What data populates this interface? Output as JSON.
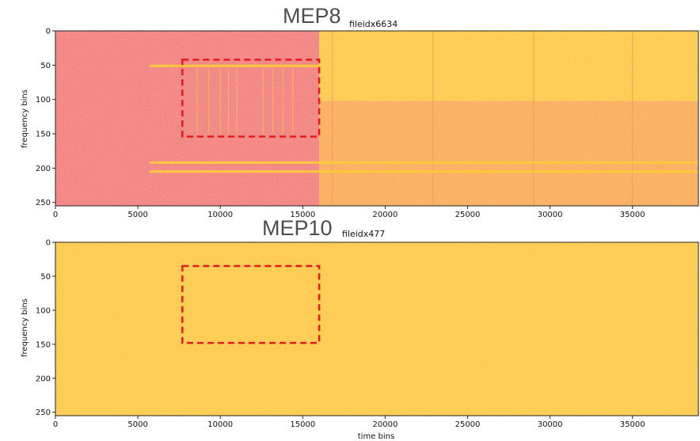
{
  "colors": {
    "pink_background": "#f27a78",
    "yellow_background": "#fdc92e",
    "orange_background": "#fbaa48",
    "signal_line": "#fcc93a",
    "highlight_box": "#e8191c",
    "axis": "#222222"
  },
  "chart_data": [
    {
      "type": "heatmap",
      "title": "MEP8",
      "subtitle": "fileidx6634",
      "xlabel": "",
      "ylabel": "frequency bins",
      "xlim": [
        0,
        39000
      ],
      "ylim": [
        255,
        0
      ],
      "xticks": [
        0,
        5000,
        10000,
        15000,
        20000,
        25000,
        30000,
        35000
      ],
      "xtick_labels": [
        "0",
        "5000",
        "10000",
        "15000",
        "20000",
        "25000",
        "30000",
        "35000"
      ],
      "yticks": [
        0,
        50,
        100,
        150,
        200,
        250
      ],
      "ytick_labels": [
        "0",
        "50",
        "100",
        "150",
        "200",
        "250"
      ],
      "regions": [
        {
          "x": [
            0,
            16000
          ],
          "y": [
            0,
            255
          ],
          "color": "#f27a78"
        },
        {
          "x": [
            16000,
            39000
          ],
          "y": [
            0,
            102
          ],
          "color": "#fdc92e"
        },
        {
          "x": [
            16000,
            39000
          ],
          "y": [
            102,
            255
          ],
          "color": "#fbaa48"
        }
      ],
      "horizontal_lines": [
        {
          "x": [
            5700,
            16000
          ],
          "y": 51
        },
        {
          "x": [
            5700,
            39000
          ],
          "y": 192
        },
        {
          "x": [
            5700,
            39000
          ],
          "y": 205
        }
      ],
      "vertical_lines": [
        16800,
        22900,
        29000,
        35000
      ],
      "burst_lines": [
        8600,
        9300,
        10000,
        10500,
        11000,
        12600,
        13200,
        13800,
        14400
      ],
      "highlight_box": {
        "x": [
          7700,
          16000
        ],
        "y": [
          42,
          154
        ]
      }
    },
    {
      "type": "heatmap",
      "title": "MEP10",
      "subtitle": "fileidx477",
      "xlabel": "time bins",
      "ylabel": "frequency bins",
      "xlim": [
        0,
        39000
      ],
      "ylim": [
        255,
        0
      ],
      "xticks": [
        0,
        5000,
        10000,
        15000,
        20000,
        25000,
        30000,
        35000
      ],
      "xtick_labels": [
        "0",
        "5000",
        "10000",
        "15000",
        "20000",
        "25000",
        "30000",
        "35000"
      ],
      "yticks": [
        0,
        50,
        100,
        150,
        200,
        250
      ],
      "ytick_labels": [
        "0",
        "50",
        "100",
        "150",
        "200",
        "250"
      ],
      "regions": [
        {
          "x": [
            0,
            39000
          ],
          "y": [
            0,
            255
          ],
          "color": "#fdc92e"
        }
      ],
      "horizontal_lines": [],
      "vertical_lines": [],
      "burst_lines": [],
      "highlight_box": {
        "x": [
          7700,
          16000
        ],
        "y": [
          35,
          148
        ]
      }
    }
  ]
}
